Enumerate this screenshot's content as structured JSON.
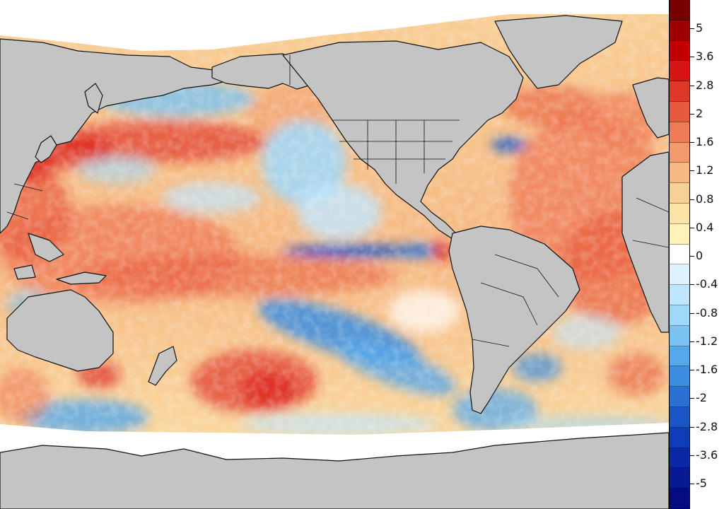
{
  "colorbar": {
    "labels": [
      "5",
      "3.6",
      "2.8",
      "2",
      "1.6",
      "1.2",
      "0.8",
      "0.4",
      "0",
      "-0.4",
      "-0.8",
      "-1.2",
      "-1.6",
      "-2",
      "-2.8",
      "-3.6",
      "-5"
    ],
    "colors": [
      "#7a0000",
      "#a00000",
      "#c20000",
      "#d81515",
      "#e03828",
      "#e85a3c",
      "#ef7a55",
      "#f29a6a",
      "#f6b882",
      "#f8cf95",
      "#fbe3a8",
      "#fff2b8",
      "#ffffff",
      "#dff2ff",
      "#bfe6ff",
      "#9ed8fb",
      "#79c2f2",
      "#55a8ea",
      "#3b8de0",
      "#2b70d4",
      "#1a55c8",
      "#0f3cb8",
      "#0a28a6",
      "#061a94",
      "#030c80"
    ]
  },
  "map": {
    "land_color": "#c4c4c4",
    "ice_color": "#ffffff",
    "border_color": "#111111"
  }
}
